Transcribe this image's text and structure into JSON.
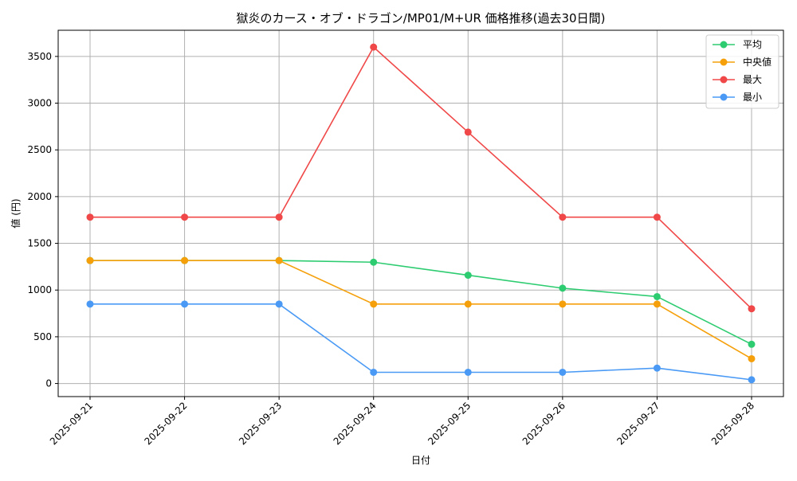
{
  "chart_data": {
    "type": "line",
    "title": "獄炎のカース・オブ・ドラゴン/MP01/M+UR 価格推移(過去30日間)",
    "xlabel": "日付",
    "ylabel": "値 (円)",
    "categories": [
      "2025-09-21",
      "2025-09-22",
      "2025-09-23",
      "2025-09-24",
      "2025-09-25",
      "2025-09-26",
      "2025-09-27",
      "2025-09-28"
    ],
    "ylim": [
      -140,
      3780
    ],
    "yticks": [
      0,
      500,
      1000,
      1500,
      2000,
      2500,
      3000,
      3500
    ],
    "grid": true,
    "legend_position": "top-right",
    "series": [
      {
        "name": "平均",
        "color": "#2ecc71",
        "values": [
          1316,
          1316,
          1316,
          1298,
          1159,
          1020,
          930,
          420
        ]
      },
      {
        "name": "中央値",
        "color": "#f5a00a",
        "values": [
          1316,
          1316,
          1316,
          850,
          850,
          850,
          850,
          265
        ]
      },
      {
        "name": "最大",
        "color": "#f04848",
        "values": [
          1780,
          1780,
          1780,
          3600,
          2690,
          1780,
          1780,
          800
        ]
      },
      {
        "name": "最小",
        "color": "#4a9af5",
        "values": [
          850,
          850,
          850,
          120,
          120,
          120,
          165,
          40
        ]
      }
    ]
  }
}
